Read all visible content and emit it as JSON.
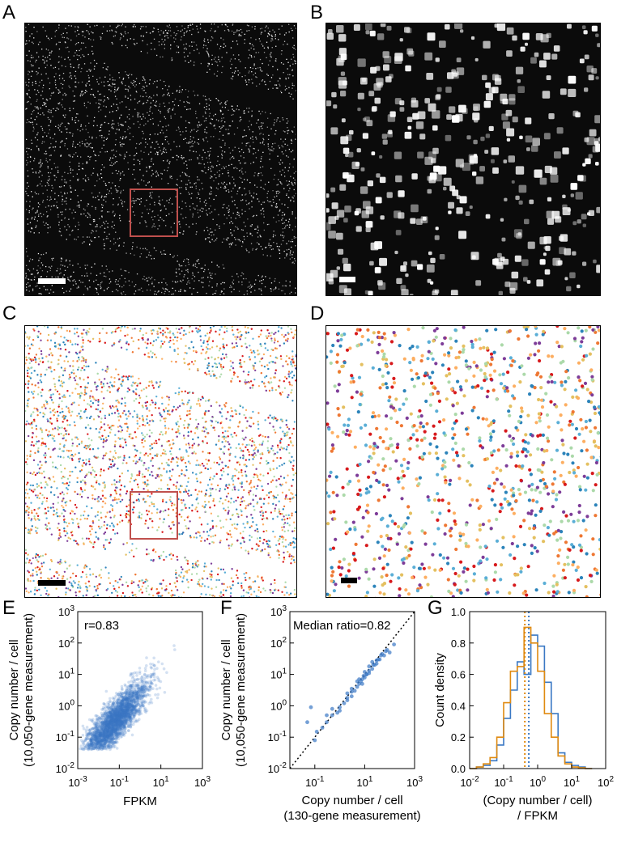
{
  "panels": {
    "A": "A",
    "B": "B",
    "C": "C",
    "D": "D",
    "E": "E",
    "F": "F",
    "G": "G"
  },
  "colors": {
    "image_bg": "#0b0b0b",
    "spot": "#ffffff",
    "roi": "#c0504d",
    "scale_bar_dark": "#ffffff",
    "scale_bar_light": "#000000",
    "palette": [
      "#d7191c",
      "#fdae61",
      "#abd9a9",
      "#5aaed6",
      "#2b83ba",
      "#e4c060",
      "#7d3c98",
      "#ee7733"
    ],
    "scatter_point": "#3a78c4",
    "hist_blue": "#3a78c4",
    "hist_orange": "#e08a10"
  },
  "chart_data": [
    {
      "panel": "E",
      "type": "scatter",
      "xlabel": "FPKM",
      "ylabel_line1": "Copy number / cell",
      "ylabel_line2": "(10,050-gene measurement)",
      "annotation": "r=0.83",
      "xscale": "log",
      "yscale": "log",
      "xlim": [
        0.001,
        1000
      ],
      "ylim": [
        0.01,
        1000
      ],
      "xticks": [
        {
          "v": 0.001,
          "base": "10",
          "exp": "-3"
        },
        {
          "v": 0.1,
          "base": "10",
          "exp": "-1"
        },
        {
          "v": 10,
          "base": "10",
          "exp": "1"
        },
        {
          "v": 1000,
          "base": "10",
          "exp": "3"
        }
      ],
      "yticks": [
        {
          "v": 0.01,
          "base": "10",
          "exp": "-2"
        },
        {
          "v": 0.1,
          "base": "10",
          "exp": "-1"
        },
        {
          "v": 1,
          "base": "10",
          "exp": "0"
        },
        {
          "v": 10,
          "base": "10",
          "exp": "1"
        },
        {
          "v": 100,
          "base": "10",
          "exp": "2"
        },
        {
          "v": 1000,
          "base": "10",
          "exp": "3"
        }
      ],
      "points_summary": "dense cloud, correlation r=0.83"
    },
    {
      "panel": "F",
      "type": "scatter",
      "xlabel_line1": "Copy number / cell",
      "xlabel_line2": "(130-gene measurement)",
      "ylabel_line1": "Copy number / cell",
      "ylabel_line2": "(10,050-gene measurement)",
      "annotation": "Median ratio=0.82",
      "xscale": "log",
      "yscale": "log",
      "xlim": [
        0.01,
        1000
      ],
      "ylim": [
        0.01,
        1000
      ],
      "xticks": [
        {
          "v": 0.1,
          "base": "10",
          "exp": "-1"
        },
        {
          "v": 10,
          "base": "10",
          "exp": "1"
        },
        {
          "v": 1000,
          "base": "10",
          "exp": "3"
        }
      ],
      "yticks": [
        {
          "v": 0.01,
          "base": "10",
          "exp": "-2"
        },
        {
          "v": 0.1,
          "base": "10",
          "exp": "-1"
        },
        {
          "v": 1,
          "base": "10",
          "exp": "0"
        },
        {
          "v": 10,
          "base": "10",
          "exp": "1"
        },
        {
          "v": 100,
          "base": "10",
          "exp": "2"
        },
        {
          "v": 1000,
          "base": "10",
          "exp": "3"
        }
      ],
      "reference_line": "y = x (dotted)",
      "x": [
        0.05,
        0.07,
        0.1,
        0.12,
        0.2,
        0.3,
        0.3,
        0.5,
        0.8,
        1,
        1,
        1.5,
        2,
        2,
        3,
        3,
        4,
        5,
        5,
        6,
        8,
        8,
        10,
        10,
        12,
        15,
        15,
        20,
        20,
        25,
        30,
        30,
        40,
        50,
        60,
        80,
        100,
        150,
        0.5,
        2,
        7,
        15,
        3,
        9,
        22,
        45,
        6,
        12,
        35,
        70
      ],
      "y": [
        0.3,
        0.9,
        0.08,
        0.15,
        0.2,
        0.5,
        0.3,
        0.5,
        0.6,
        0.9,
        0.7,
        1.2,
        1.5,
        2.5,
        2,
        3.5,
        3,
        4,
        6,
        5,
        7,
        5,
        8,
        12,
        10,
        11,
        18,
        15,
        25,
        20,
        28,
        22,
        30,
        45,
        40,
        60,
        50,
        90,
        0.8,
        1.8,
        6,
        13,
        2.8,
        9,
        20,
        40,
        7,
        10,
        30,
        55
      ]
    },
    {
      "panel": "G",
      "type": "histogram",
      "xlabel_line1": "(Copy number / cell)",
      "xlabel_line2": "/ FPKM",
      "ylabel": "Count density",
      "xscale": "log",
      "xlim": [
        0.01,
        100
      ],
      "ylim": [
        0,
        1.0
      ],
      "xticks": [
        {
          "v": 0.01,
          "base": "10",
          "exp": "-2"
        },
        {
          "v": 0.1,
          "base": "10",
          "exp": "-1"
        },
        {
          "v": 1,
          "base": "10",
          "exp": "0"
        },
        {
          "v": 10,
          "base": "10",
          "exp": "1"
        },
        {
          "v": 100,
          "base": "10",
          "exp": "2"
        }
      ],
      "yticks": [
        "0.0",
        "0.2",
        "0.4",
        "0.6",
        "0.8",
        "1.0"
      ],
      "bin_edges_log10": [
        -2.0,
        -1.8,
        -1.6,
        -1.4,
        -1.2,
        -1.0,
        -0.8,
        -0.6,
        -0.4,
        -0.2,
        0.0,
        0.2,
        0.4,
        0.6,
        0.8,
        1.0,
        1.2,
        1.4,
        1.6
      ],
      "series": [
        {
          "color": "#3a78c4",
          "median": 0.55,
          "values": [
            0.0,
            0.01,
            0.02,
            0.05,
            0.15,
            0.32,
            0.5,
            0.68,
            0.6,
            0.85,
            0.78,
            0.55,
            0.35,
            0.1,
            0.04,
            0.02,
            0.01,
            0.0
          ]
        },
        {
          "color": "#e08a10",
          "median": 0.42,
          "values": [
            0.0,
            0.01,
            0.03,
            0.07,
            0.2,
            0.42,
            0.62,
            0.65,
            0.9,
            0.8,
            0.62,
            0.35,
            0.2,
            0.08,
            0.03,
            0.01,
            0.005,
            0.0
          ]
        }
      ]
    }
  ]
}
